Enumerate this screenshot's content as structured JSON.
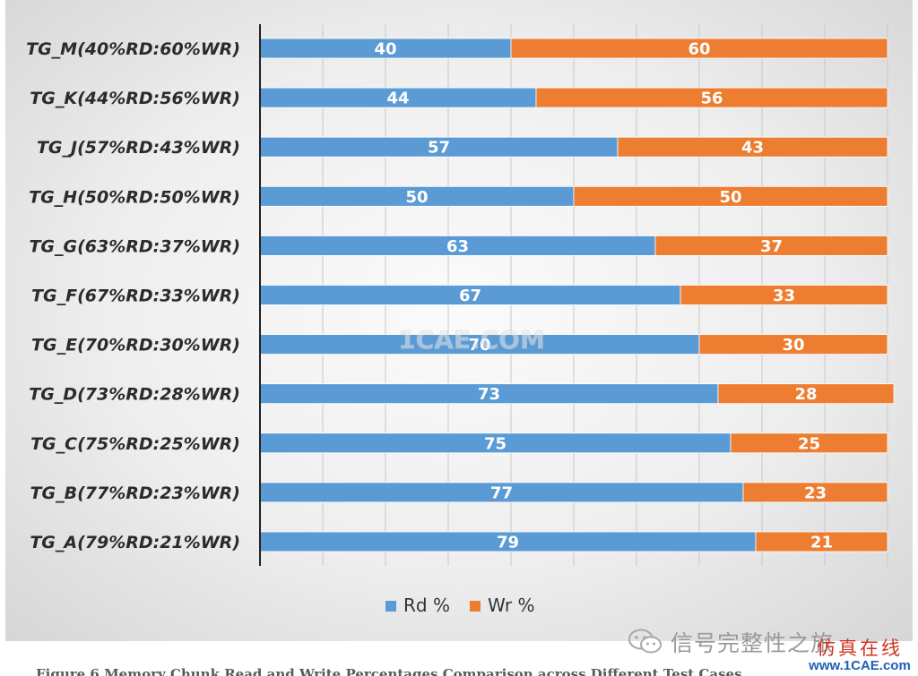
{
  "chart_data": {
    "type": "bar",
    "orientation": "horizontal",
    "stacked": true,
    "categories": [
      "TG_M(40%RD:60%WR)",
      "TG_K(44%RD:56%WR)",
      "TG_J(57%RD:43%WR)",
      "TG_H(50%RD:50%WR)",
      "TG_G(63%RD:37%WR)",
      "TG_F(67%RD:33%WR)",
      "TG_E(70%RD:30%WR)",
      "TG_D(73%RD:28%WR)",
      "TG_C(75%RD:25%WR)",
      "TG_B(77%RD:23%WR)",
      "TG_A(79%RD:21%WR)"
    ],
    "series": [
      {
        "name": "Rd %",
        "color": "#5b9bd5",
        "values": [
          40,
          44,
          57,
          50,
          63,
          67,
          70,
          73,
          75,
          77,
          79
        ]
      },
      {
        "name": "Wr %",
        "color": "#ed7d31",
        "values": [
          60,
          56,
          43,
          50,
          37,
          33,
          30,
          28,
          25,
          23,
          21
        ]
      }
    ],
    "xlim": [
      0,
      100
    ],
    "grid": true,
    "data_labels": true,
    "legend_position": "bottom"
  },
  "watermarks": {
    "center": "1CAE.COM",
    "wechat": "信号完整性之旅",
    "brand_cn": "仿真在线",
    "brand_url": "www.1CAE.com"
  },
  "caption": "Figure 6 Memory Chunk Read and Write Percentages Comparison across Different Test Cases"
}
